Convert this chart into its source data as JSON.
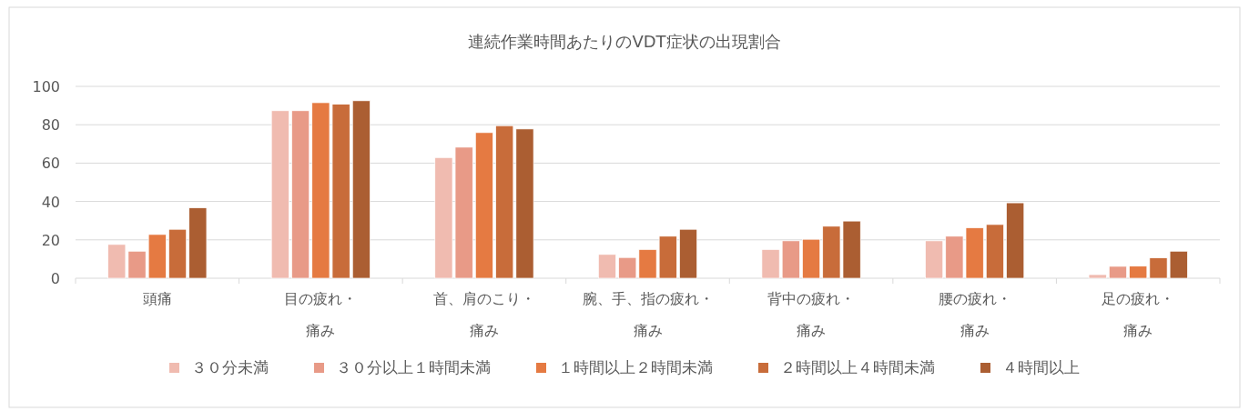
{
  "chart_data": {
    "type": "bar",
    "title": "連続作業時間あたりのVDT症状の出現割合",
    "categories": [
      "頭痛",
      "目の疲れ・痛み",
      "首、肩のこり・痛み",
      "腕、手、指の疲れ・痛み",
      "背中の疲れ・痛み",
      "腰の疲れ・痛み",
      "足の疲れ・痛み"
    ],
    "series": [
      {
        "name": "３０分未満",
        "color": "#f0bbb0",
        "values": [
          17.6,
          87.3,
          62.9,
          12.4,
          15.0,
          19.5,
          1.9
        ]
      },
      {
        "name": "３０分以上１時間未満",
        "color": "#e89a87",
        "values": [
          14.1,
          87.3,
          68.3,
          10.8,
          19.5,
          21.9,
          6.2
        ]
      },
      {
        "name": "１時間以上２時間未満",
        "color": "#e57a42",
        "values": [
          22.8,
          91.5,
          75.9,
          15.0,
          20.3,
          26.3,
          6.3
        ]
      },
      {
        "name": "２時間以上４時間未満",
        "color": "#c86c3a",
        "values": [
          25.5,
          90.7,
          79.5,
          21.9,
          27.1,
          28.0,
          10.6
        ]
      },
      {
        "name": "４時間以上",
        "color": "#ab5e32",
        "values": [
          36.7,
          92.5,
          77.8,
          25.5,
          29.8,
          39.3,
          14.1
        ]
      }
    ],
    "ylim": [
      0,
      100
    ],
    "yticks": [
      0,
      20,
      40,
      60,
      80,
      100
    ],
    "grid": "y",
    "legend": "bottom"
  }
}
